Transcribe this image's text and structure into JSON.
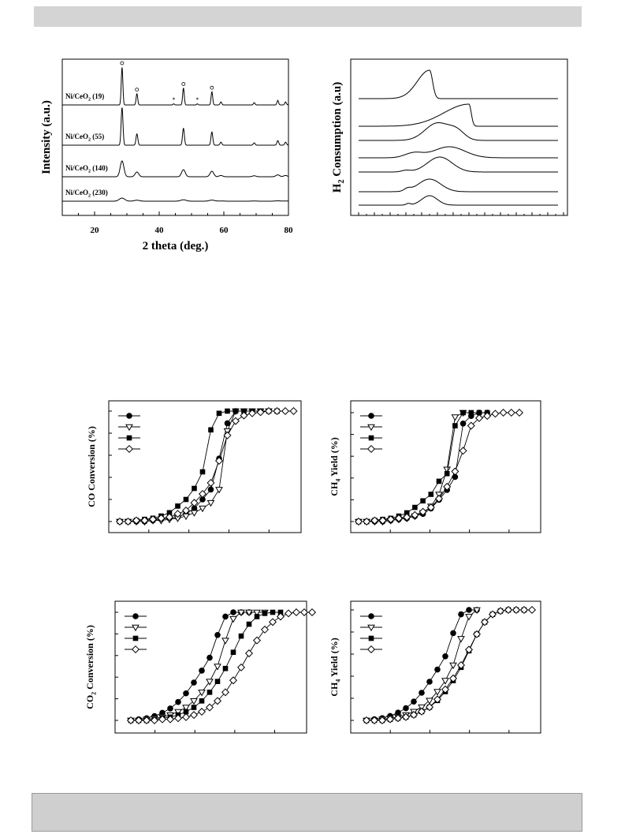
{
  "page": {
    "header_bar": "",
    "footer_box": ""
  },
  "chart_data": [
    {
      "type": "line",
      "xlabel": "2 theta (deg.)",
      "ylabel": "Intensity (a.u.)",
      "xlim": [
        10,
        80
      ],
      "xticks": [
        20,
        40,
        60,
        80
      ],
      "series": [
        {
          "name": "Ni/CeO2 (19)",
          "label_main": "Ni/CeO",
          "label_sub": "2",
          "label_tail": " (19)"
        },
        {
          "name": "Ni/CeO2 (55)",
          "label_main": "Ni/CeO",
          "label_sub": "2",
          "label_tail": " (55)"
        },
        {
          "name": "Ni/CeO2 (140)",
          "label_main": "Ni/CeO",
          "label_sub": "2",
          "label_tail": " (140)"
        },
        {
          "name": "Ni/CeO2 (230)",
          "label_main": "Ni/CeO",
          "label_sub": "2",
          "label_tail": " (230)"
        }
      ],
      "peaks_deg": [
        28.5,
        33.1,
        47.5,
        56.3,
        59.1,
        69.4,
        76.7,
        79.1
      ],
      "minor_peaks_deg": [
        44.5,
        51.8
      ],
      "annotations": {
        "ceo2_marker": "o",
        "ni_marker": "*"
      }
    },
    {
      "type": "line",
      "ylabel_main": "H",
      "ylabel_sub": "2",
      "ylabel_tail": " Consumption (a.u)",
      "xlabel": "",
      "n_profiles": 7
    },
    {
      "type": "line",
      "ylabel": "CO Conversion (%)",
      "xlabel": "",
      "legend": "top-left",
      "ylim": [
        0,
        100
      ],
      "series": [
        {
          "marker": "filled-circle",
          "values": [
            0,
            0,
            0,
            0,
            1,
            2,
            3,
            4,
            7,
            12,
            20,
            29,
            57,
            89,
            100
          ]
        },
        {
          "marker": "open-triangle",
          "values": [
            0,
            0,
            0,
            0,
            1,
            1,
            2,
            3,
            5,
            8,
            12,
            17,
            29,
            82,
            100,
            100,
            100,
            100,
            100
          ]
        },
        {
          "marker": "filled-square",
          "values": [
            0,
            0,
            1,
            2,
            3,
            5,
            8,
            14,
            20,
            30,
            45,
            83,
            98,
            100,
            100,
            100,
            100,
            100,
            100,
            100
          ]
        },
        {
          "marker": "open-diamond",
          "values": [
            0,
            0,
            1,
            1,
            2,
            3,
            4,
            7,
            10,
            17,
            25,
            35,
            55,
            78,
            91,
            96,
            98,
            99,
            100,
            100,
            100,
            100
          ]
        }
      ]
    },
    {
      "type": "line",
      "ylabel_main": "CH",
      "ylabel_sub": "4",
      "ylabel_tail": " Yield (%)",
      "xlabel": "",
      "legend": "top-left",
      "ylim": [
        0,
        100
      ],
      "series": [
        {
          "marker": "filled-circle",
          "values": [
            0,
            0,
            0,
            0,
            1,
            2,
            3,
            5,
            7,
            12,
            20,
            29,
            41,
            90,
            97,
            100,
            100
          ]
        },
        {
          "marker": "open-triangle",
          "values": [
            0,
            0,
            0,
            0,
            1,
            2,
            3,
            5,
            8,
            14,
            25,
            48,
            96,
            100
          ]
        },
        {
          "marker": "filled-square",
          "values": [
            0,
            0,
            1,
            2,
            3,
            5,
            8,
            13,
            19,
            25,
            37,
            44,
            88,
            100,
            100,
            100,
            100
          ]
        },
        {
          "marker": "open-diamond",
          "values": [
            0,
            0,
            1,
            1,
            2,
            3,
            4,
            6,
            9,
            13,
            21,
            32,
            46,
            65,
            88,
            95,
            97,
            99,
            100,
            100,
            100
          ]
        }
      ]
    },
    {
      "type": "line",
      "ylabel_main": "CO",
      "ylabel_sub": "2",
      "ylabel_tail": " Conversion (%)",
      "xlabel": "",
      "legend": "top-left",
      "ylim": [
        0,
        100
      ],
      "series": [
        {
          "marker": "filled-circle",
          "values": [
            0,
            1,
            2,
            4,
            7,
            11,
            17,
            25,
            35,
            46,
            58,
            79,
            96,
            100,
            100,
            100
          ]
        },
        {
          "marker": "open-triangle",
          "values": [
            0,
            0,
            1,
            2,
            3,
            5,
            8,
            12,
            18,
            26,
            36,
            50,
            74,
            94,
            100,
            100,
            100,
            100
          ]
        },
        {
          "marker": "filled-square",
          "values": [
            0,
            0,
            0,
            1,
            2,
            3,
            5,
            8,
            12,
            18,
            26,
            36,
            48,
            63,
            78,
            89,
            96,
            99,
            100,
            100
          ]
        },
        {
          "marker": "open-diamond",
          "values": [
            0,
            0,
            0,
            0,
            1,
            1,
            2,
            3,
            5,
            8,
            12,
            18,
            26,
            37,
            49,
            62,
            74,
            84,
            91,
            96,
            99,
            100,
            100,
            100
          ]
        }
      ]
    },
    {
      "type": "line",
      "ylabel_main": "CH",
      "ylabel_sub": "4",
      "ylabel_tail": " Yield (%)",
      "xlabel": "",
      "legend": "top-left",
      "ylim": [
        0,
        100
      ],
      "series": [
        {
          "marker": "filled-circle",
          "values": [
            0,
            1,
            2,
            4,
            7,
            11,
            17,
            25,
            35,
            46,
            58,
            79,
            96,
            100,
            100
          ]
        },
        {
          "marker": "open-triangle",
          "values": [
            0,
            0,
            1,
            2,
            3,
            5,
            8,
            12,
            18,
            26,
            36,
            50,
            74,
            94,
            100
          ]
        },
        {
          "marker": "filled-square",
          "values": [
            0,
            0,
            0,
            1,
            2,
            3,
            5,
            8,
            12,
            18,
            26,
            36,
            48,
            63,
            78,
            89,
            96,
            99,
            100,
            100,
            100
          ]
        },
        {
          "marker": "open-diamond",
          "values": [
            0,
            0,
            0,
            1,
            2,
            3,
            5,
            8,
            12,
            19,
            28,
            38,
            50,
            64,
            78,
            89,
            96,
            99,
            100,
            100,
            100,
            100
          ]
        }
      ]
    }
  ]
}
